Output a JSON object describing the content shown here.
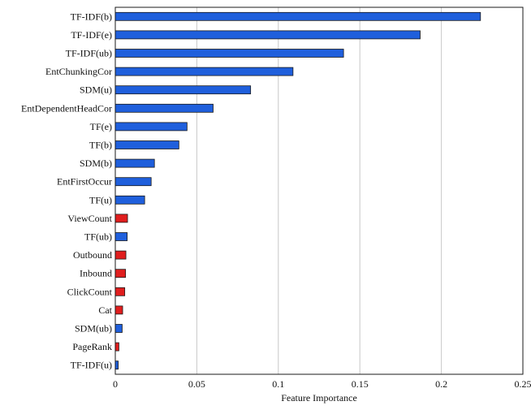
{
  "chart_data": {
    "type": "bar",
    "orientation": "horizontal",
    "title": "",
    "xlabel": "Feature Importance",
    "ylabel": "",
    "xlim": [
      0,
      0.25
    ],
    "x_ticks": [
      0,
      0.05,
      0.1,
      0.15,
      0.2,
      0.25
    ],
    "x_tick_labels": [
      "0",
      "0.05",
      "0.1",
      "0.15",
      "0.2",
      "0.25"
    ],
    "grid": "vertical",
    "legend": "none",
    "colors": {
      "blue": "#1f5fdc",
      "red": "#e01e1e",
      "edge": "#1a1a1a",
      "grid": "#c8c8c8"
    },
    "categories": [
      "TF-IDF(b)",
      "TF-IDF(e)",
      "TF-IDF(ub)",
      "EntChunkingCor",
      "SDM(u)",
      "EntDependentHeadCor",
      "TF(e)",
      "TF(b)",
      "SDM(b)",
      "EntFirstOccur",
      "TF(u)",
      "ViewCount",
      "TF(ub)",
      "Outbound",
      "Inbound",
      "ClickCount",
      "Cat",
      "SDM(ub)",
      "PageRank",
      "TF-IDF(u)"
    ],
    "values": [
      0.224,
      0.187,
      0.14,
      0.109,
      0.083,
      0.06,
      0.044,
      0.039,
      0.024,
      0.022,
      0.018,
      0.0075,
      0.0073,
      0.0065,
      0.0063,
      0.0058,
      0.0045,
      0.0042,
      0.0022,
      0.0018
    ],
    "bar_colors": [
      "blue",
      "blue",
      "blue",
      "blue",
      "blue",
      "blue",
      "blue",
      "blue",
      "blue",
      "blue",
      "blue",
      "red",
      "blue",
      "red",
      "red",
      "red",
      "red",
      "blue",
      "red",
      "blue"
    ]
  }
}
